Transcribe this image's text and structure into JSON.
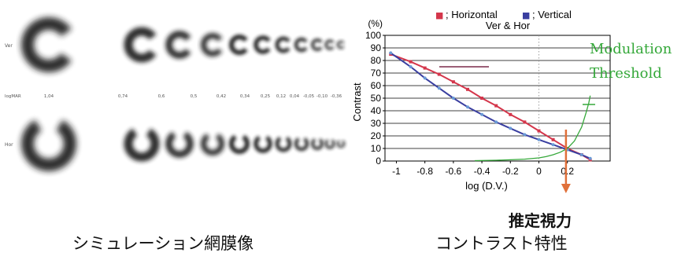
{
  "chart_data": [
    {
      "type": "image",
      "panel": "landolt-ring-simulation",
      "row_labels": [
        "Ver",
        "Hor"
      ],
      "logmar_header": "logMAR",
      "logmar_ticks": [
        "1,04",
        "0,74",
        "0,6",
        "0,5",
        "0,42",
        "0,34",
        "0,25",
        "0,12",
        "0,04",
        "-0,05",
        "-0,10",
        "-0,36"
      ]
    },
    {
      "type": "line",
      "legend": [
        {
          "marker": "■",
          "label": "; Horizontal",
          "color": "#d4364b"
        },
        {
          "marker": "■",
          "label": "; Vertical",
          "color": "#3a3fa0"
        }
      ],
      "subtitle": "Ver & Hor",
      "ylabel": "Contrast",
      "yunit": "(%)",
      "xlabel": "log (D.V.)",
      "xlim": [
        -1.08,
        0.5
      ],
      "ylim": [
        0,
        100
      ],
      "yticks": [
        0,
        10,
        20,
        30,
        40,
        50,
        60,
        70,
        80,
        90,
        100
      ],
      "xticks": [
        -1,
        -0.8,
        -0.6,
        -0.4,
        -0.2,
        0,
        0.2
      ],
      "xtick_labels": [
        "-1",
        "-0.8",
        "-0.6",
        "-0.4",
        "-0.2",
        "0",
        "0.2"
      ],
      "grid": true,
      "series": [
        {
          "name": "Horizontal",
          "color": "#d4364b",
          "x": [
            -1.04,
            -0.9,
            -0.8,
            -0.7,
            -0.6,
            -0.5,
            -0.4,
            -0.3,
            -0.2,
            -0.1,
            0.0,
            0.1,
            0.2,
            0.3,
            0.36
          ],
          "y": [
            85,
            79,
            74,
            69,
            63,
            57,
            50,
            44,
            37,
            31,
            24,
            17,
            10,
            5,
            1
          ]
        },
        {
          "name": "Vertical",
          "color": "#3a3fa0",
          "x": [
            -1.04,
            -0.9,
            -0.8,
            -0.7,
            -0.6,
            -0.5,
            -0.4,
            -0.3,
            -0.2,
            -0.1,
            0.0,
            0.1,
            0.2,
            0.3,
            0.36
          ],
          "y": [
            86,
            75,
            66,
            58,
            50,
            43,
            37,
            31,
            26,
            21,
            17,
            13,
            9,
            5,
            2
          ]
        },
        {
          "color": "#35a83a",
          "x": [
            -0.45,
            -0.3,
            -0.2,
            -0.1,
            0.0,
            0.05,
            0.1,
            0.15,
            0.2,
            0.25,
            0.3,
            0.33,
            0.35,
            0.36
          ],
          "y": [
            0.3,
            0.6,
            1,
            1.5,
            2.5,
            3.5,
            5,
            7,
            10,
            16,
            27,
            38,
            46,
            52
          ]
        }
      ],
      "modulation_label": "Modulation",
      "threshold_label": "Threshold",
      "estimate_x": 0.19,
      "estimate_label": "推定視力"
    }
  ],
  "captions": {
    "left": "シミュレーション網膜像",
    "right": "コントラスト特性"
  },
  "colors": {
    "horizontal": "#d4364b",
    "vertical": "#3a3fa0",
    "threshold": "#35a83a",
    "arrow": "#e0703a"
  }
}
